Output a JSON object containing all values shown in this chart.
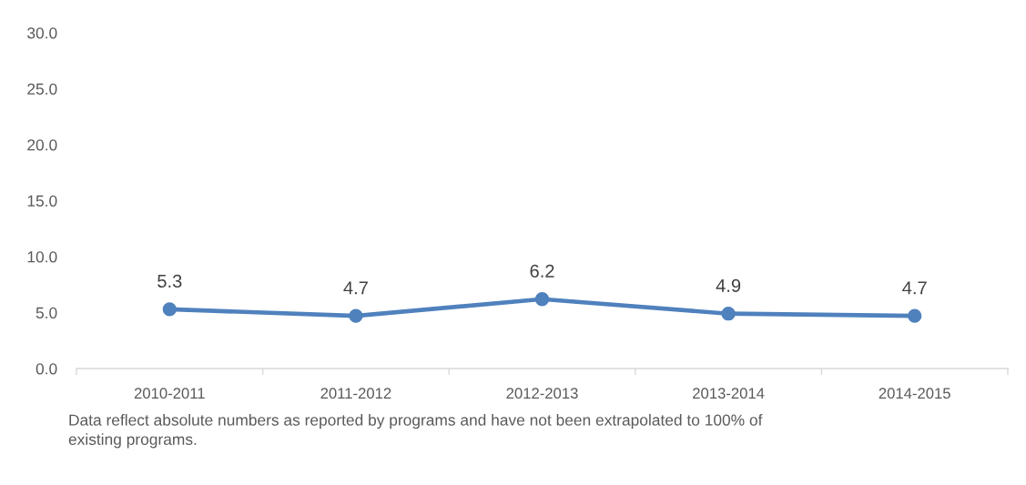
{
  "chart_data": {
    "type": "line",
    "categories": [
      "2010-2011",
      "2011-2012",
      "2012-2013",
      "2013-2014",
      "2014-2015"
    ],
    "values": [
      5.3,
      4.7,
      6.2,
      4.9,
      4.7
    ],
    "color": "#4f81bd",
    "ylim": [
      0,
      30
    ],
    "yticks": [
      {
        "value": 0,
        "label": "0.0"
      },
      {
        "value": 5,
        "label": "5.0"
      },
      {
        "value": 10,
        "label": "10.0"
      },
      {
        "value": 15,
        "label": "15.0"
      },
      {
        "value": 20,
        "label": "20.0"
      },
      {
        "value": 25,
        "label": "25.0"
      },
      {
        "value": 30,
        "label": "30.0"
      }
    ],
    "marker": "circle",
    "line_style": "solid",
    "data_labels": true,
    "grid": false,
    "annotations": [
      "Data reflect absolute numbers as reported by programs and have not been extrapolated to 100% of existing programs."
    ]
  }
}
